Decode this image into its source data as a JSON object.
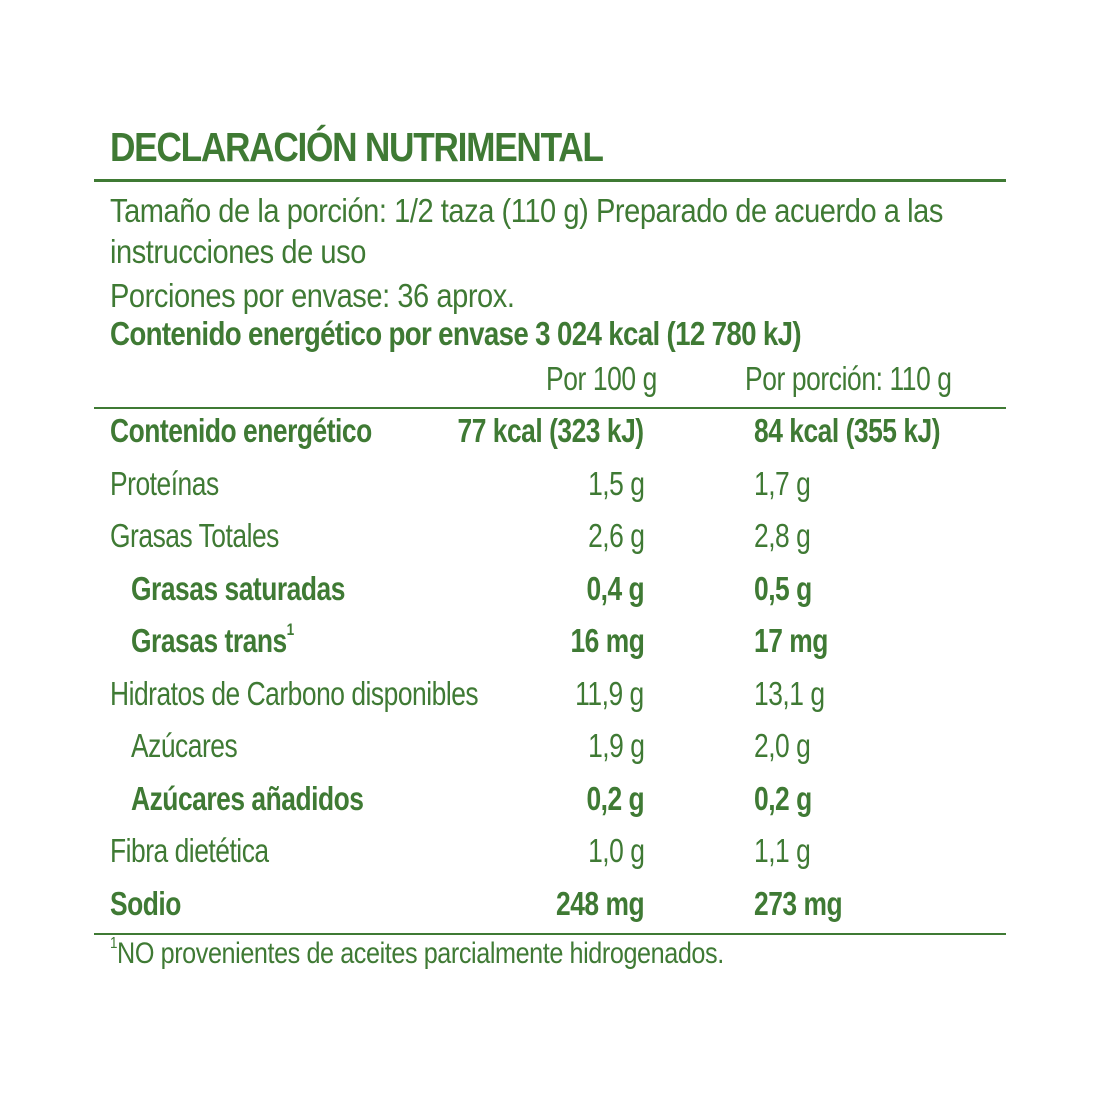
{
  "label": {
    "title": "DECLARACIÓN NUTRIMENTAL",
    "serving_line_1": "Tamaño de la porción: 1/2 taza (110 g) Preparado de acuerdo a las",
    "serving_line_2": "instrucciones de uso",
    "servings_per_package": "Porciones por envase: 36 aprox.",
    "energy_per_package": "Contenido energético por envase 3 024 kcal (12 780 kJ)",
    "column_headers": [
      "Por 100 g",
      "Por porción: 110 g"
    ],
    "rows": [
      {
        "name": "Contenido energético",
        "per100": "77 kcal (323 kJ)",
        "perServing": "84 kcal (355 kJ)",
        "bold": true,
        "indent": false
      },
      {
        "name": "Proteínas",
        "per100": "1,5 g",
        "perServing": "1,7 g",
        "bold": false,
        "indent": false
      },
      {
        "name": "Grasas Totales",
        "per100": "2,6 g",
        "perServing": "2,8 g",
        "bold": false,
        "indent": false
      },
      {
        "name": "Grasas saturadas",
        "per100": "0,4 g",
        "perServing": "0,5 g",
        "bold": true,
        "indent": true
      },
      {
        "name": "Grasas trans",
        "sup": "1",
        "per100": "16 mg",
        "perServing": "17 mg",
        "bold": true,
        "indent": true
      },
      {
        "name": "Hidratos de Carbono disponibles",
        "per100": "11,9 g",
        "perServing": "13,1 g",
        "bold": false,
        "indent": false
      },
      {
        "name": "Azúcares",
        "per100": "1,9 g",
        "perServing": "2,0 g",
        "bold": false,
        "indent": true
      },
      {
        "name": "Azúcares añadidos",
        "per100": "0,2 g",
        "perServing": "0,2 g",
        "bold": true,
        "indent": true
      },
      {
        "name": "Fibra dietética",
        "per100": "1,0 g",
        "perServing": "1,1 g",
        "bold": false,
        "indent": false
      },
      {
        "name": "Sodio",
        "per100": "248 mg",
        "perServing": "273 mg",
        "bold": true,
        "indent": false
      }
    ],
    "footnote_mark": "1",
    "footnote": "NO provenientes de aceites parcialmente hidrogenados.",
    "text_color": "#3f7a34"
  }
}
